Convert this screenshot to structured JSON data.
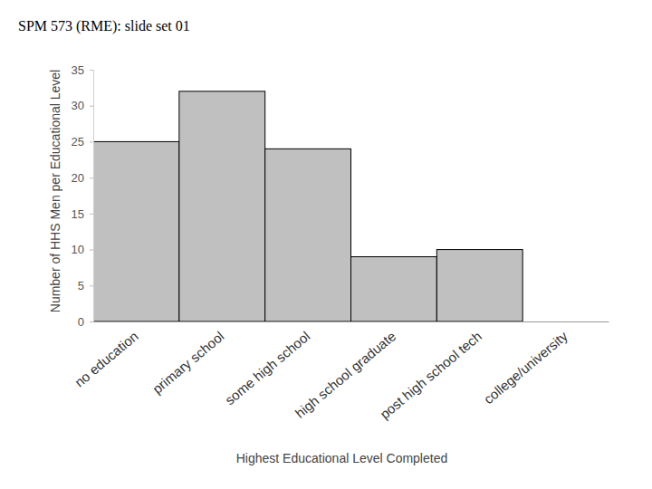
{
  "chart_data": {
    "type": "bar",
    "title": "SPM 573 (RME): slide set 01",
    "x_label": "Highest Educational Level Completed",
    "y_label": "Number of HHS Men per Educational Level",
    "categories": [
      "no education",
      "primary school",
      "some high school",
      "high school graduate",
      "post high school tech",
      "college/university"
    ],
    "values": [
      25,
      32,
      24,
      9,
      10,
      0
    ],
    "color": "#c0c0c0",
    "ylim": [
      0,
      35
    ],
    "yticks": [
      0,
      5,
      10,
      15,
      20,
      25,
      30,
      35
    ],
    "grid": false
  }
}
